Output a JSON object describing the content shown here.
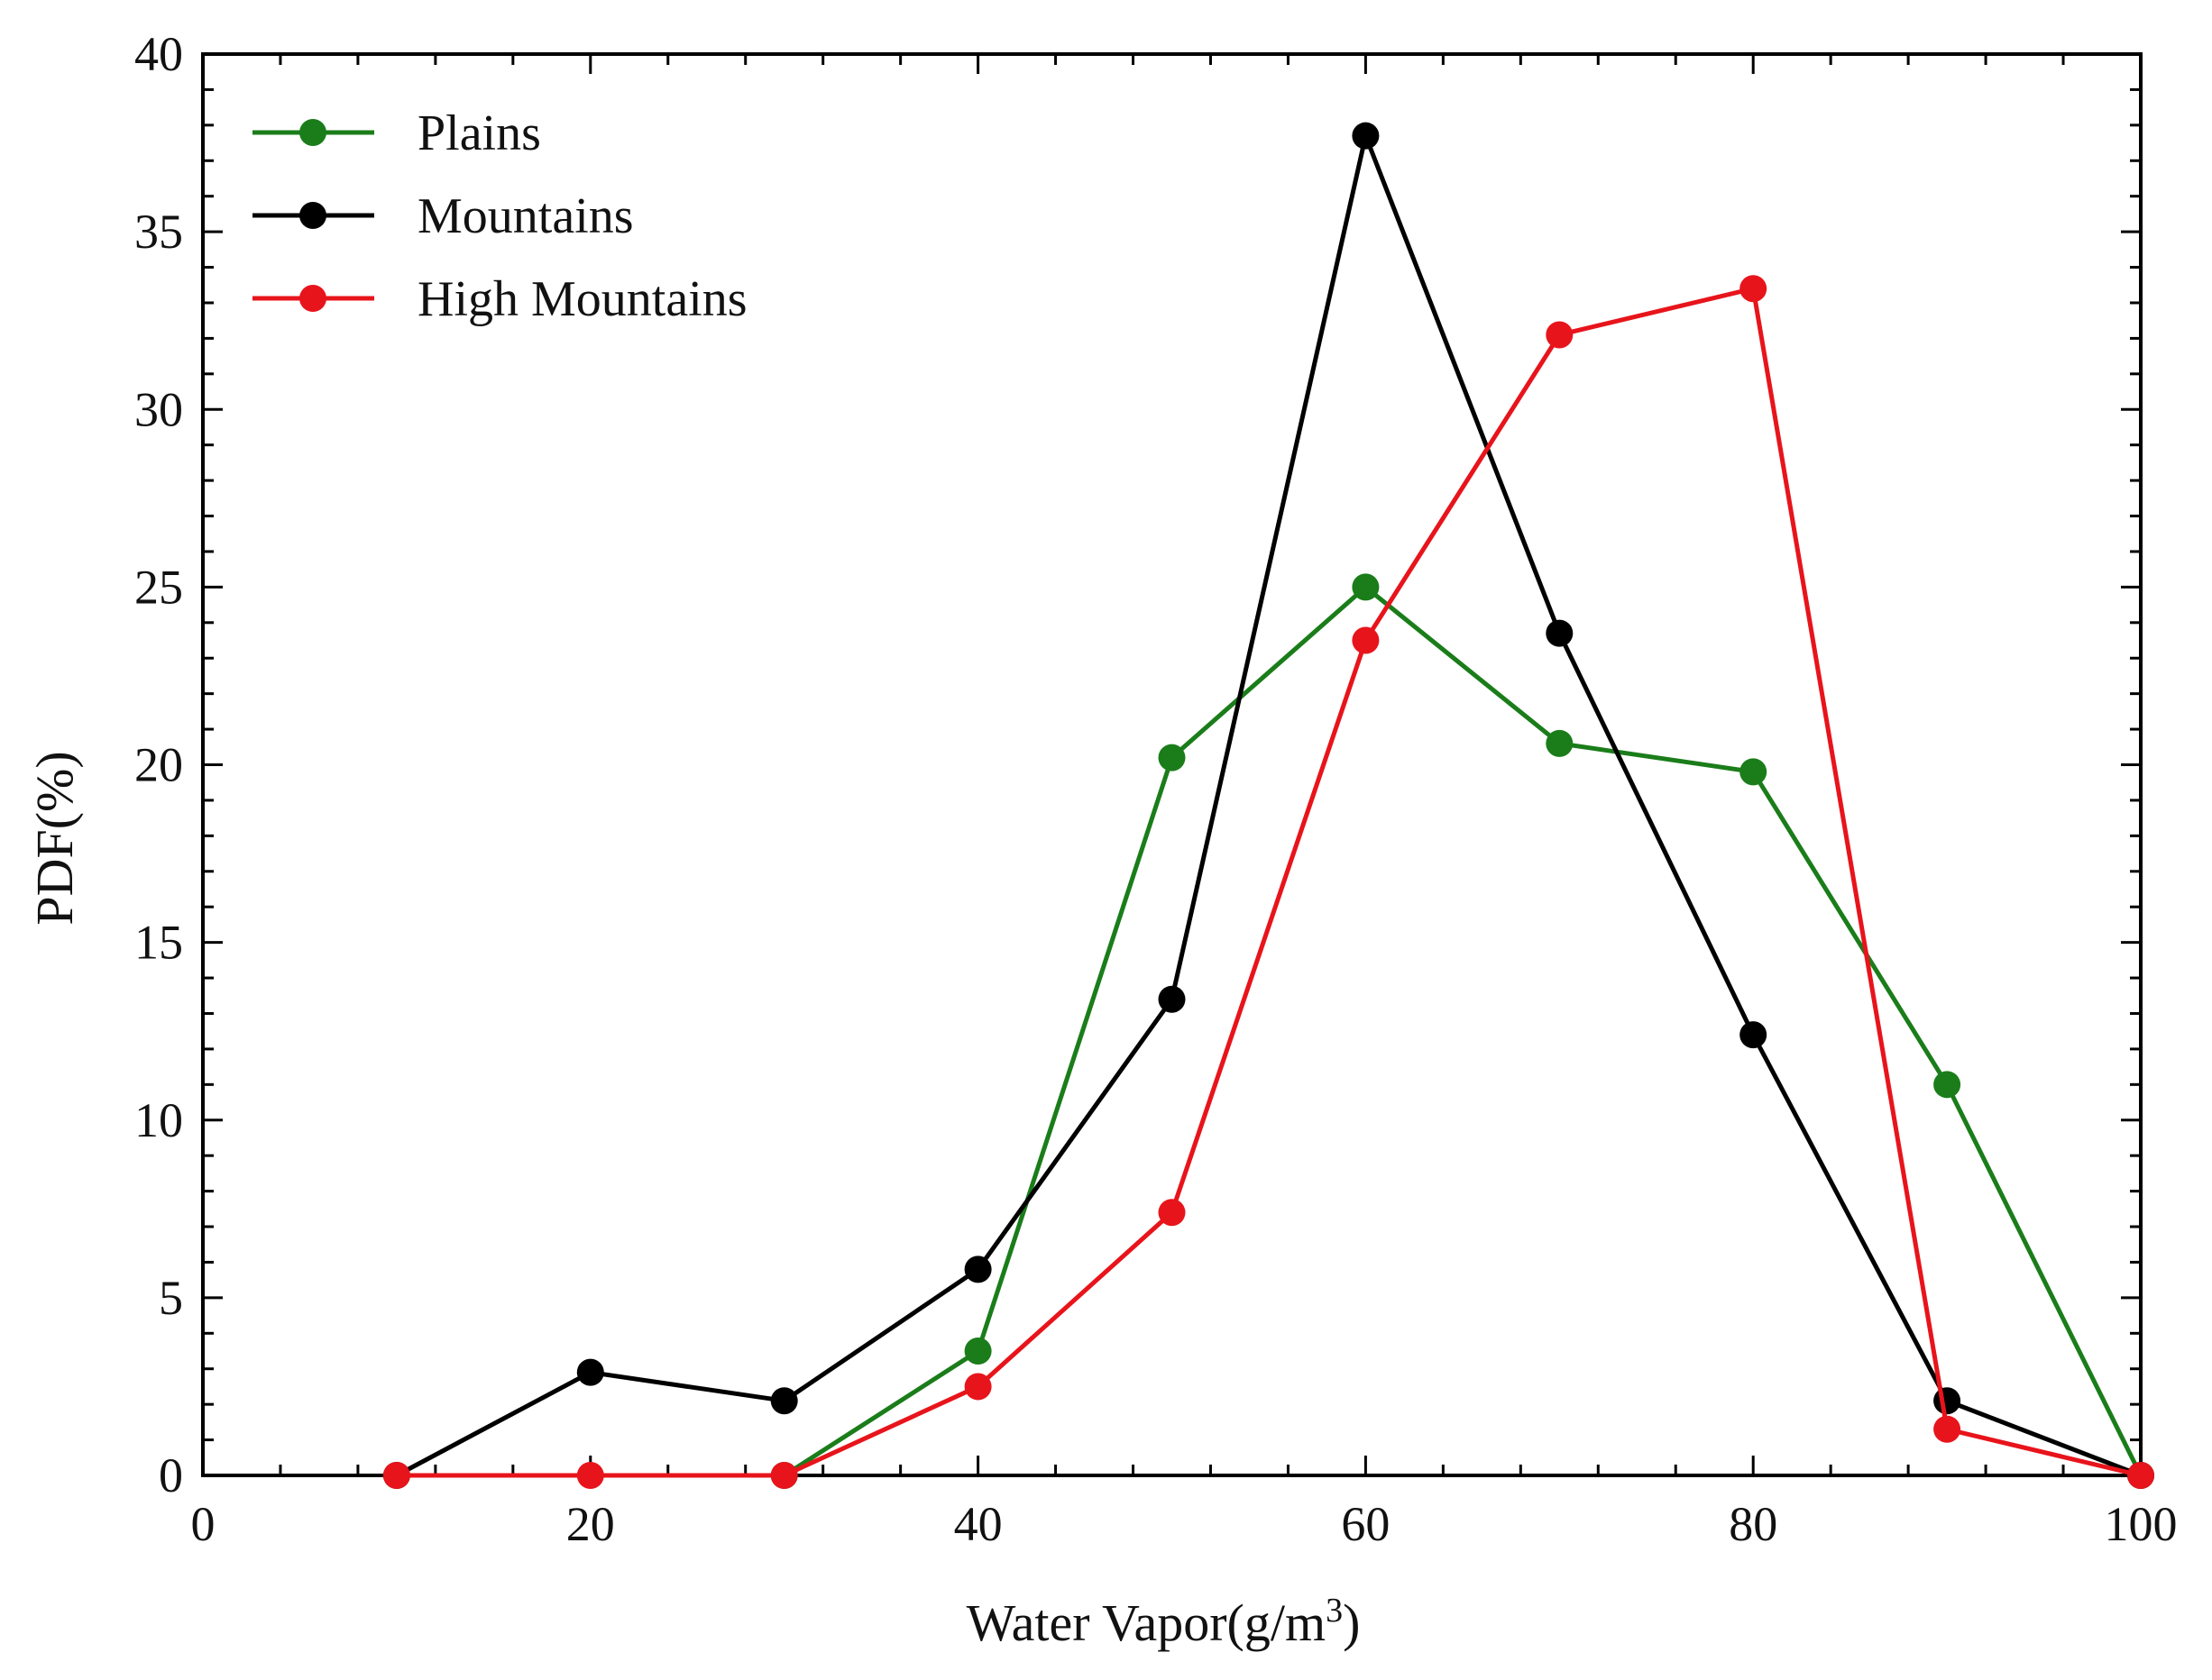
{
  "chart_data": {
    "type": "line",
    "xlabel": "Water Vapor(g/m",
    "xlabel_sup": "3",
    "xlabel_end": ")",
    "ylabel": "PDF(%)",
    "xlim": [
      0,
      100
    ],
    "ylim": [
      0,
      40
    ],
    "xticks": [
      0,
      20,
      40,
      60,
      80,
      100
    ],
    "yticks": [
      0,
      5,
      10,
      15,
      20,
      25,
      30,
      35,
      40
    ],
    "legend_position": "top-left",
    "series": [
      {
        "name": "Plains",
        "color": "#1a7d1a",
        "x": [
          10,
          20,
          30,
          40,
          50,
          60,
          70,
          80,
          90,
          100
        ],
        "y": [
          null,
          null,
          0,
          3.5,
          20.2,
          25.0,
          20.6,
          19.8,
          11.0,
          0
        ]
      },
      {
        "name": "Mountains",
        "color": "#000000",
        "x": [
          10,
          20,
          30,
          40,
          50,
          60,
          70,
          80,
          90,
          100
        ],
        "y": [
          0,
          2.9,
          2.1,
          5.8,
          13.4,
          37.7,
          23.7,
          12.4,
          2.1,
          0
        ]
      },
      {
        "name": "High Mountains",
        "color": "#e8141b",
        "x": [
          10,
          20,
          30,
          40,
          50,
          60,
          70,
          80,
          90,
          100
        ],
        "y": [
          0,
          0,
          0,
          2.5,
          7.4,
          23.5,
          32.1,
          33.4,
          1.3,
          0
        ]
      }
    ]
  }
}
